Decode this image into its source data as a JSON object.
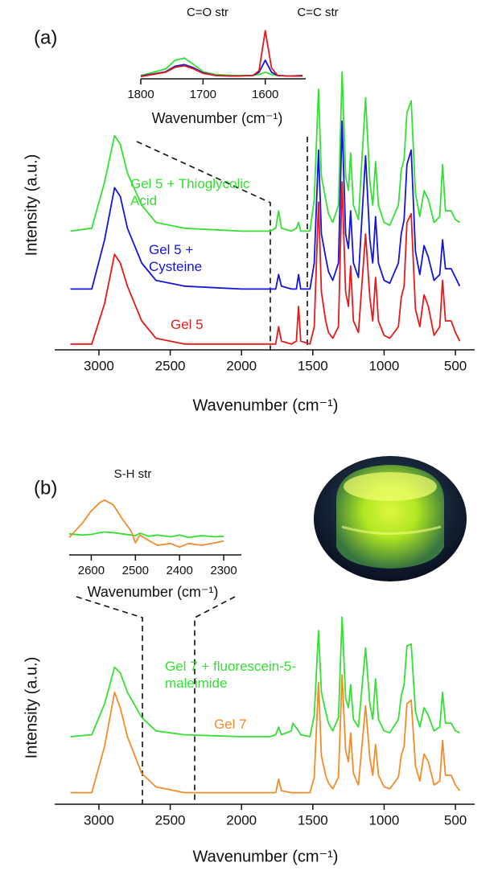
{
  "chart_data": [
    {
      "type": "line",
      "panel_label": "(a)",
      "x_label": "Wavenumber (cm⁻¹)",
      "y_label": "Intensity (a.u.)",
      "xlim": [
        3310,
        365
      ],
      "ylim": [
        0,
        100
      ],
      "xticks": [
        3000,
        2500,
        2000,
        1500,
        1000,
        500
      ],
      "x": [
        3200,
        3050,
        2960,
        2890,
        2850,
        2800,
        2700,
        2600,
        2400,
        2000,
        1800,
        1760,
        1740,
        1720,
        1650,
        1615,
        1600,
        1585,
        1520,
        1490,
        1460,
        1440,
        1410,
        1390,
        1360,
        1320,
        1295,
        1270,
        1250,
        1235,
        1215,
        1180,
        1130,
        1100,
        1080,
        1060,
        1040,
        1000,
        960,
        900,
        880,
        860,
        840,
        810,
        780,
        750,
        720,
        690,
        650,
        610,
        590,
        570,
        530,
        500,
        470
      ],
      "series": [
        {
          "name": "Gel 5 + Thioglycolic Acid",
          "color": "#33e033",
          "values": [
            41,
            42,
            58,
            74,
            71,
            61,
            50,
            44,
            42,
            41,
            41,
            42,
            48,
            42,
            41,
            42,
            44,
            41,
            41,
            52,
            90,
            60,
            52,
            47,
            44,
            50,
            96,
            60,
            55,
            68,
            50,
            45,
            87,
            58,
            50,
            65,
            50,
            44,
            43,
            50,
            62,
            66,
            82,
            86,
            54,
            46,
            55,
            52,
            44,
            46,
            64,
            48,
            48,
            45,
            44
          ]
        },
        {
          "name": "Gel 5 + Cysteine",
          "color": "#1414dc",
          "values": [
            21,
            21,
            38,
            56,
            53,
            42,
            30,
            24,
            22,
            21,
            21,
            21,
            26,
            22,
            21,
            21,
            26,
            21,
            21,
            30,
            69,
            40,
            32,
            27,
            24,
            30,
            79,
            40,
            35,
            48,
            30,
            25,
            67,
            38,
            30,
            46,
            30,
            24,
            23,
            30,
            40,
            45,
            64,
            69,
            34,
            26,
            36,
            32,
            24,
            26,
            38,
            28,
            28,
            25,
            22
          ]
        },
        {
          "name": "Gel 5",
          "color": "#e41a1a",
          "values": [
            2,
            2,
            16,
            33,
            30,
            22,
            10,
            4,
            2,
            2,
            2,
            2,
            8,
            3,
            2,
            3,
            15,
            3,
            2,
            8,
            51,
            20,
            10,
            6,
            4,
            8,
            58,
            20,
            15,
            29,
            10,
            6,
            40,
            18,
            10,
            25,
            10,
            5,
            4,
            8,
            18,
            22,
            44,
            47,
            14,
            8,
            19,
            15,
            5,
            8,
            24,
            10,
            10,
            6,
            3
          ]
        }
      ]
    },
    {
      "type": "line",
      "x_label": "Wavenumber (cm⁻¹)",
      "annotations": [
        "C=O str",
        "C=C str"
      ],
      "xlim": [
        1800,
        1535
      ],
      "ylim": [
        0,
        10
      ],
      "xticks": [
        1800,
        1700,
        1600
      ],
      "x": [
        1800,
        1760,
        1745,
        1730,
        1715,
        1700,
        1680,
        1650,
        1620,
        1610,
        1600,
        1590,
        1580,
        1560,
        1540
      ],
      "series": [
        {
          "color": "#33e033",
          "values": [
            0.6,
            1.8,
            3.4,
            3.8,
            2.6,
            1.3,
            0.8,
            0.6,
            0.6,
            0.8,
            1.2,
            0.8,
            0.6,
            0.5,
            0.5
          ]
        },
        {
          "color": "#1414dc",
          "values": [
            0.5,
            1.3,
            2.3,
            2.6,
            2.0,
            1.1,
            0.6,
            0.5,
            0.6,
            1.2,
            3.4,
            1.2,
            0.6,
            0.5,
            0.6
          ]
        },
        {
          "color": "#e41a1a",
          "values": [
            0.4,
            1.2,
            2.1,
            2.4,
            1.8,
            1.0,
            0.6,
            0.5,
            0.6,
            1.5,
            8.8,
            2.0,
            0.6,
            0.5,
            0.5
          ]
        }
      ]
    },
    {
      "type": "line",
      "panel_label": "(b)",
      "x_label": "Wavenumber (cm⁻¹)",
      "y_label": "Intensity (a.u.)",
      "xlim": [
        3310,
        365
      ],
      "ylim": [
        0,
        100
      ],
      "xticks": [
        3000,
        2500,
        2000,
        1500,
        1000,
        500
      ],
      "x": [
        3200,
        3050,
        2960,
        2890,
        2850,
        2800,
        2700,
        2600,
        2400,
        2000,
        1800,
        1760,
        1740,
        1720,
        1650,
        1640,
        1600,
        1585,
        1520,
        1490,
        1460,
        1440,
        1410,
        1390,
        1360,
        1320,
        1295,
        1270,
        1250,
        1235,
        1215,
        1180,
        1130,
        1100,
        1080,
        1060,
        1040,
        1000,
        960,
        900,
        880,
        860,
        840,
        810,
        780,
        750,
        720,
        690,
        650,
        610,
        590,
        570,
        530,
        500,
        470
      ],
      "series": [
        {
          "name": "Gel 7 + fluorescein-5-maleimide",
          "color": "#33e033",
          "values": [
            35,
            36,
            52,
            71,
            68,
            58,
            45,
            38,
            36,
            35,
            35,
            36,
            40,
            36,
            38,
            42,
            38,
            36,
            35,
            46,
            90,
            58,
            48,
            42,
            38,
            45,
            97,
            55,
            50,
            62,
            44,
            40,
            81,
            52,
            44,
            65,
            44,
            38,
            37,
            44,
            56,
            62,
            82,
            83,
            48,
            40,
            50,
            46,
            38,
            40,
            58,
            42,
            42,
            38,
            37
          ]
        },
        {
          "name": "Gel 7",
          "color": "#f28c28",
          "values": [
            6,
            6,
            30,
            58,
            50,
            35,
            16,
            9,
            6,
            6,
            6,
            6,
            13,
            7,
            6,
            6,
            6,
            6,
            6,
            14,
            63,
            25,
            15,
            11,
            8,
            14,
            67,
            28,
            22,
            37,
            16,
            10,
            51,
            24,
            15,
            31,
            15,
            9,
            8,
            14,
            25,
            30,
            52,
            54,
            20,
            12,
            26,
            22,
            10,
            12,
            33,
            15,
            15,
            10,
            7
          ]
        }
      ]
    },
    {
      "type": "line",
      "x_label": "Wavenumber (cm⁻¹)",
      "annotations": [
        "S-H str"
      ],
      "xlim": [
        2650,
        2260
      ],
      "ylim": [
        0,
        10
      ],
      "xticks": [
        2600,
        2500,
        2400,
        2300
      ],
      "x": [
        2650,
        2620,
        2600,
        2580,
        2570,
        2550,
        2530,
        2510,
        2500,
        2490,
        2470,
        2450,
        2420,
        2400,
        2380,
        2350,
        2320,
        2300
      ],
      "series": [
        {
          "color": "#33e033",
          "values": [
            3.5,
            3.3,
            3.4,
            3.7,
            3.8,
            3.7,
            3.5,
            3.3,
            3.2,
            3.6,
            3.1,
            3.3,
            3.0,
            3.3,
            2.9,
            3.2,
            3.0,
            3.1
          ]
        },
        {
          "color": "#f28c28",
          "values": [
            2.9,
            5.3,
            7.3,
            8.7,
            9.1,
            8.3,
            6.0,
            4.0,
            2.0,
            3.3,
            2.4,
            1.6,
            1.9,
            1.3,
            1.9,
            1.6,
            2.0,
            2.3
          ]
        }
      ]
    }
  ]
}
